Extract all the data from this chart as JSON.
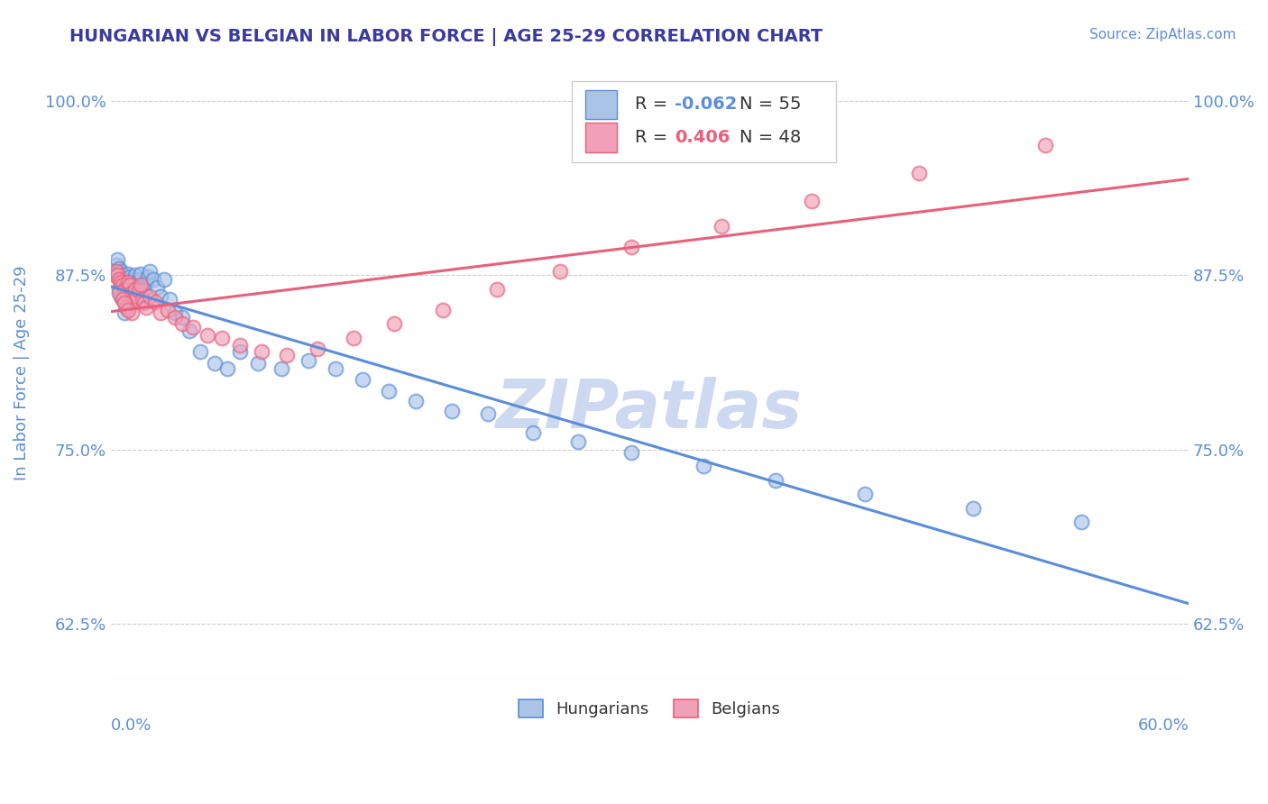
{
  "title": "HUNGARIAN VS BELGIAN IN LABOR FORCE | AGE 25-29 CORRELATION CHART",
  "source_text": "Source: ZipAtlas.com",
  "ylabel": "In Labor Force | Age 25-29",
  "xlim": [
    0.0,
    0.6
  ],
  "ylim": [
    0.585,
    1.025
  ],
  "yticks": [
    1.0,
    0.875,
    0.75,
    0.625
  ],
  "ytick_labels": [
    "100.0%",
    "87.5%",
    "75.0%",
    "62.5%"
  ],
  "bottom_xtick_left": "0.0%",
  "bottom_xtick_right": "60.0%",
  "title_color": "#3a3a9f",
  "tick_color": "#5b8dd9",
  "grid_color": "#cccccc",
  "background_color": "#ffffff",
  "watermark_text": "ZIPatlas",
  "watermark_color": "#ccd9f0",
  "legend_R_hungarian": "-0.062",
  "legend_N_hungarian": "55",
  "legend_R_belgian": "0.406",
  "legend_N_belgian": "48",
  "hungarian_color": "#aac4e8",
  "belgian_color": "#f0a0b8",
  "hungarian_line_color": "#5b8dd9",
  "belgian_line_color": "#e8607a",
  "scatter_alpha": 0.65,
  "scatter_size": 130,
  "hungarian_x": [
    0.002,
    0.003,
    0.004,
    0.005,
    0.006,
    0.007,
    0.008,
    0.009,
    0.01,
    0.011,
    0.012,
    0.013,
    0.014,
    0.015,
    0.016,
    0.017,
    0.018,
    0.019,
    0.02,
    0.021,
    0.022,
    0.024,
    0.026,
    0.028,
    0.03,
    0.033,
    0.036,
    0.04,
    0.044,
    0.05,
    0.058,
    0.065,
    0.072,
    0.082,
    0.095,
    0.11,
    0.125,
    0.14,
    0.155,
    0.17,
    0.19,
    0.21,
    0.235,
    0.26,
    0.29,
    0.33,
    0.37,
    0.42,
    0.48,
    0.54,
    0.005,
    0.007,
    0.009,
    0.008,
    0.006
  ],
  "hungarian_y": [
    0.878,
    0.882,
    0.886,
    0.88,
    0.878,
    0.875,
    0.872,
    0.87,
    0.876,
    0.874,
    0.868,
    0.872,
    0.875,
    0.87,
    0.872,
    0.876,
    0.868,
    0.865,
    0.87,
    0.874,
    0.878,
    0.872,
    0.866,
    0.86,
    0.872,
    0.858,
    0.848,
    0.845,
    0.835,
    0.82,
    0.812,
    0.808,
    0.82,
    0.812,
    0.808,
    0.814,
    0.808,
    0.8,
    0.792,
    0.785,
    0.778,
    0.776,
    0.762,
    0.756,
    0.748,
    0.738,
    0.728,
    0.718,
    0.708,
    0.698,
    0.865,
    0.858,
    0.852,
    0.848,
    0.86
  ],
  "belgian_x": [
    0.002,
    0.003,
    0.004,
    0.005,
    0.006,
    0.007,
    0.008,
    0.009,
    0.01,
    0.011,
    0.012,
    0.013,
    0.014,
    0.015,
    0.016,
    0.017,
    0.018,
    0.019,
    0.02,
    0.022,
    0.025,
    0.028,
    0.032,
    0.036,
    0.04,
    0.046,
    0.054,
    0.062,
    0.072,
    0.084,
    0.098,
    0.115,
    0.135,
    0.158,
    0.185,
    0.215,
    0.25,
    0.29,
    0.34,
    0.39,
    0.45,
    0.52,
    0.005,
    0.007,
    0.009,
    0.012,
    0.008,
    0.01
  ],
  "belgian_y": [
    0.875,
    0.878,
    0.875,
    0.872,
    0.87,
    0.868,
    0.865,
    0.862,
    0.87,
    0.868,
    0.862,
    0.858,
    0.865,
    0.86,
    0.864,
    0.868,
    0.858,
    0.855,
    0.852,
    0.86,
    0.856,
    0.848,
    0.85,
    0.845,
    0.84,
    0.838,
    0.832,
    0.83,
    0.825,
    0.82,
    0.818,
    0.822,
    0.83,
    0.84,
    0.85,
    0.865,
    0.878,
    0.895,
    0.91,
    0.928,
    0.948,
    0.968,
    0.862,
    0.858,
    0.852,
    0.848,
    0.855,
    0.85
  ]
}
